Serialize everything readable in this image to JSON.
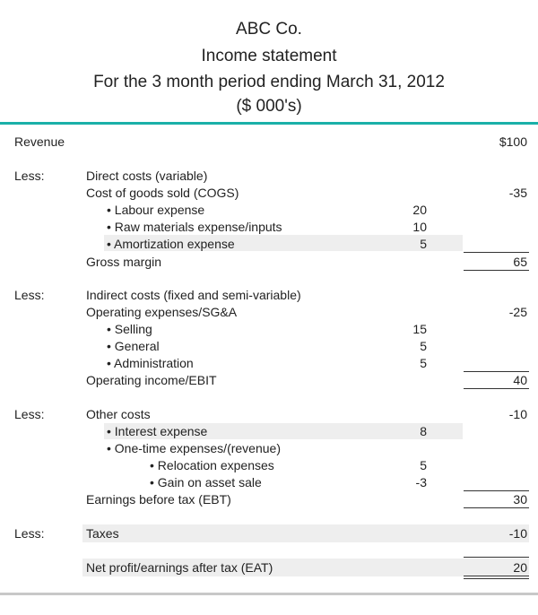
{
  "header": {
    "company": "ABC Co.",
    "statement": "Income statement",
    "period": "For the 3 month period ending March 31, 2012",
    "units": "($ 000's)"
  },
  "rows": {
    "revenue": {
      "label": "Revenue",
      "value": "$100"
    },
    "less1": "Less:",
    "direct_costs": "Direct costs (variable)",
    "cogs": {
      "label": "Cost of goods sold (COGS)",
      "value": "-35"
    },
    "labour": {
      "label": "• Labour expense",
      "value": "20"
    },
    "raw_materials": {
      "label": "• Raw materials expense/inputs",
      "value": "10"
    },
    "amortization": {
      "label": "• Amortization expense",
      "value": "5"
    },
    "gross_margin": {
      "label": "Gross margin",
      "value": "65"
    },
    "less2": "Less:",
    "indirect_costs": "Indirect costs (fixed and semi-variable)",
    "opex": {
      "label": "Operating expenses/SG&A",
      "value": "-25"
    },
    "selling": {
      "label": "• Selling",
      "value": "15"
    },
    "general": {
      "label": "• General",
      "value": "5"
    },
    "administration": {
      "label": "• Administration",
      "value": "5"
    },
    "ebit": {
      "label": "Operating income/EBIT",
      "value": "40"
    },
    "less3": "Less:",
    "other_costs": {
      "label": "Other costs",
      "value": "-10"
    },
    "interest": {
      "label": "• Interest expense",
      "value": "8"
    },
    "one_time": "• One-time expenses/(revenue)",
    "relocation": {
      "label": "• Relocation expenses",
      "value": "5"
    },
    "gain_asset": {
      "label": "• Gain on asset sale",
      "value": "-3"
    },
    "ebt": {
      "label": "Earnings before tax (EBT)",
      "value": "30"
    },
    "less4": "Less:",
    "taxes": {
      "label": "Taxes",
      "value": "-10"
    },
    "net_profit": {
      "label": "Net profit/earnings after tax (EAT)",
      "value": "20"
    }
  },
  "colors": {
    "accent": "#1ab0a8",
    "row_shade": "#eeeeee",
    "footer_rule": "#c8c8c8"
  }
}
